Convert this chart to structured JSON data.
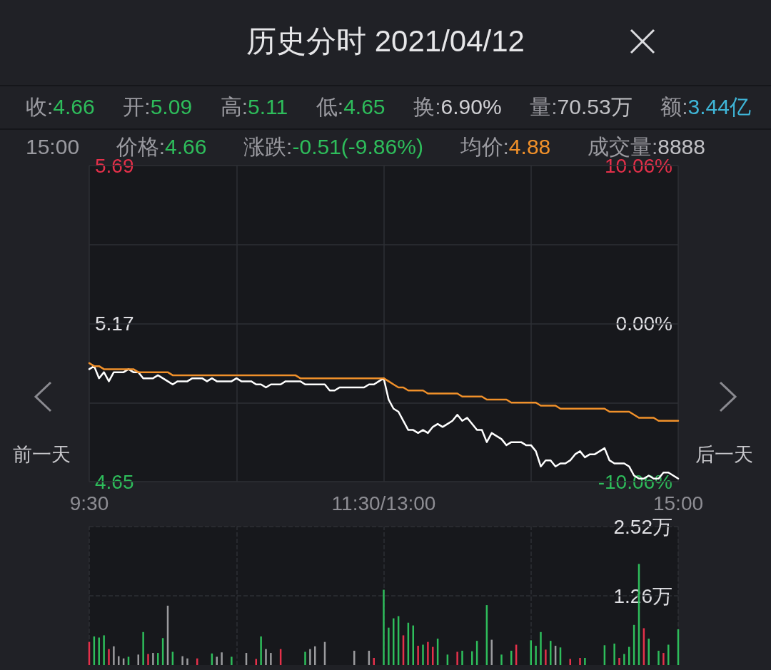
{
  "chart_data": [
    {
      "type": "line",
      "title": "历史分时 2021/04/12",
      "annotations": [
        "收:4.66",
        "开:5.09",
        "高:5.11",
        "低:4.65",
        "换:6.90%",
        "量:70.53万",
        "额:3.44亿",
        "15:00",
        "价格:4.66",
        "涨跌:-0.51(-9.86%)",
        "均价:4.88",
        "成交量:8888",
        "前一天",
        "后一天"
      ],
      "categories": [
        "9:30",
        null,
        null,
        null,
        null,
        null,
        null,
        null,
        null,
        null,
        null,
        null,
        null,
        null,
        null,
        null,
        null,
        null,
        null,
        null,
        null,
        null,
        null,
        null,
        null,
        null,
        null,
        null,
        null,
        null,
        null,
        null,
        null,
        null,
        null,
        null,
        null,
        null,
        null,
        null,
        null,
        null,
        null,
        null,
        null,
        null,
        null,
        null,
        null,
        null,
        null,
        null,
        null,
        null,
        null,
        null,
        null,
        null,
        null,
        null,
        "11:30/13:00",
        null,
        null,
        null,
        null,
        null,
        null,
        null,
        null,
        null,
        null,
        null,
        null,
        null,
        null,
        null,
        null,
        null,
        null,
        null,
        null,
        null,
        null,
        null,
        null,
        null,
        null,
        null,
        null,
        null,
        null,
        null,
        null,
        null,
        null,
        null,
        null,
        null,
        null,
        null,
        null,
        null,
        null,
        null,
        null,
        null,
        null,
        null,
        null,
        null,
        null,
        null,
        null,
        null,
        null,
        null,
        null,
        null,
        null,
        null,
        "15:00"
      ],
      "ylim": [
        4.65,
        5.69
      ],
      "yticks": [
        4.65,
        {
          "value": 4.91,
          "label": null
        },
        5.17,
        {
          "value": 5.43,
          "label": null
        },
        5.69
      ],
      "y2lim": [
        -10.06,
        10.06
      ],
      "y2ticks": [
        {
          "value": -10.06,
          "label": "-10.06%"
        },
        {
          "value": -5.03,
          "label": null
        },
        {
          "value": 0,
          "label": "0.00%"
        },
        {
          "value": 5.03,
          "label": null
        },
        {
          "value": 10.06,
          "label": "10.06%"
        }
      ],
      "grid": true,
      "marker": "none",
      "series": [
        {
          "color": "#ffffff",
          "values": [
            5.02,
            5.03,
            4.99,
            5.01,
            4.98,
            5.01,
            5.01,
            5.01,
            5.02,
            5.01,
            5.01,
            4.99,
            4.99,
            4.99,
            5.0,
            4.99,
            4.98,
            4.97,
            4.98,
            4.98,
            4.98,
            4.99,
            4.99,
            4.99,
            4.98,
            4.99,
            4.98,
            4.98,
            4.98,
            4.98,
            4.99,
            4.98,
            4.98,
            4.98,
            4.97,
            4.97,
            4.96,
            4.97,
            4.97,
            4.97,
            4.98,
            4.98,
            4.98,
            4.98,
            4.97,
            4.97,
            4.97,
            4.97,
            4.97,
            4.95,
            4.95,
            4.96,
            4.96,
            4.96,
            4.96,
            4.96,
            4.96,
            4.97,
            4.97,
            4.98,
            4.99,
            4.92,
            4.89,
            4.88,
            4.85,
            4.82,
            4.82,
            4.81,
            4.82,
            4.81,
            4.83,
            4.84,
            4.83,
            4.84,
            4.85,
            4.87,
            4.85,
            4.86,
            4.84,
            4.82,
            4.82,
            4.78,
            4.81,
            4.8,
            4.79,
            4.77,
            4.78,
            4.78,
            4.78,
            4.77,
            4.77,
            4.75,
            4.7,
            4.72,
            4.72,
            4.7,
            4.71,
            4.71,
            4.72,
            4.74,
            4.75,
            4.73,
            4.74,
            4.74,
            4.75,
            4.76,
            4.72,
            4.71,
            4.71,
            4.71,
            4.7,
            4.67,
            4.66,
            4.66,
            4.67,
            4.66,
            4.66,
            4.68,
            4.68,
            4.67,
            4.66
          ]
        },
        {
          "color": "#f0902a",
          "values": [
            5.04,
            5.03,
            5.03,
            5.02,
            5.02,
            5.02,
            5.02,
            5.02,
            5.02,
            5.02,
            5.01,
            5.01,
            5.01,
            5.01,
            5.01,
            5.01,
            5.01,
            5.0,
            5.0,
            5.0,
            5.0,
            5.0,
            5.0,
            5.0,
            5.0,
            5.0,
            5.0,
            5.0,
            5.0,
            5.0,
            5.0,
            5.0,
            5.0,
            5.0,
            5.0,
            5.0,
            5.0,
            5.0,
            5.0,
            5.0,
            5.0,
            5.0,
            5.0,
            4.99,
            4.99,
            4.99,
            4.99,
            4.99,
            4.99,
            4.99,
            4.99,
            4.99,
            4.99,
            4.99,
            4.99,
            4.99,
            4.99,
            4.99,
            4.99,
            4.99,
            4.99,
            4.98,
            4.97,
            4.96,
            4.96,
            4.95,
            4.95,
            4.95,
            4.95,
            4.94,
            4.94,
            4.94,
            4.94,
            4.94,
            4.94,
            4.94,
            4.93,
            4.93,
            4.93,
            4.93,
            4.93,
            4.92,
            4.92,
            4.92,
            4.92,
            4.92,
            4.91,
            4.91,
            4.91,
            4.91,
            4.91,
            4.91,
            4.9,
            4.9,
            4.9,
            4.9,
            4.89,
            4.89,
            4.89,
            4.89,
            4.89,
            4.89,
            4.89,
            4.89,
            4.89,
            4.89,
            4.88,
            4.88,
            4.88,
            4.88,
            4.88,
            4.87,
            4.86,
            4.86,
            4.86,
            4.86,
            4.85,
            4.85,
            4.85,
            4.85,
            4.85
          ]
        }
      ]
    },
    {
      "type": "bar",
      "tick_labels": "y",
      "grid": true,
      "categories": [
        null,
        null,
        null,
        null,
        null,
        null,
        null,
        null,
        null,
        null,
        null,
        null,
        null,
        null,
        null,
        null,
        null,
        null,
        null,
        null,
        null,
        null,
        null,
        null,
        null,
        null,
        null,
        null,
        null,
        null,
        null,
        null,
        null,
        null,
        null,
        null,
        null,
        null,
        null,
        null,
        null,
        null,
        null,
        null,
        null,
        null,
        null,
        null,
        null,
        null,
        null,
        null,
        null,
        null,
        null,
        null,
        null,
        null,
        null,
        null,
        null,
        null,
        null,
        null,
        null,
        null,
        null,
        null,
        null,
        null,
        null,
        null,
        null,
        null,
        null,
        null,
        null,
        null,
        null,
        null,
        null,
        null,
        null,
        null,
        null,
        null,
        null,
        null,
        null,
        null,
        null,
        null,
        null,
        null,
        null,
        null,
        null,
        null,
        null,
        null,
        null,
        null,
        null,
        null,
        null,
        null,
        null,
        null,
        null,
        null,
        null,
        null,
        null,
        null,
        null,
        null,
        null,
        null,
        null,
        null,
        null
      ],
      "ylim": [
        0,
        2.52
      ],
      "yticks": [
        {
          "value": 1.26,
          "label": "1.26万"
        },
        {
          "value": 2.52,
          "label": "2.52万"
        }
      ],
      "values": [
        0.42,
        0.52,
        0.5,
        0.54,
        0.29,
        0.34,
        0.16,
        0.12,
        0.15,
        null,
        0.19,
        0.6,
        0.2,
        0.22,
        0.22,
        0.49,
        1.08,
        0.24,
        null,
        0.16,
        0.12,
        null,
        0.12,
        null,
        null,
        0.21,
        0.15,
        0.23,
        null,
        0.15,
        null,
        null,
        0.22,
        null,
        0.11,
        0.52,
        0.29,
        0.22,
        null,
        0.29,
        null,
        null,
        null,
        null,
        0.24,
        0.29,
        0.34,
        null,
        0.42,
        null,
        null,
        null,
        null,
        null,
        0.26,
        null,
        null,
        0.26,
        0.13,
        null,
        1.37,
        0.68,
        0.85,
        0.89,
        0.54,
        0.77,
        0.72,
        0.35,
        0.37,
        0.42,
        0.33,
        0.48,
        null,
        0.19,
        null,
        0.24,
        0.26,
        null,
        0.25,
        0.44,
        null,
        1.09,
        0.46,
        null,
        0.19,
        null,
        0.26,
        0.37,
        null,
        null,
        0.45,
        0.35,
        0.6,
        0.28,
        0.44,
        0.35,
        0.32,
        null,
        0.11,
        null,
        0.13,
        0.13,
        null,
        null,
        null,
        0.36,
        null,
        0.39,
        0.13,
        0.2,
        0.33,
        0.73,
        1.84,
        0.67,
        0.48,
        null,
        0.26,
        0.22,
        0.37,
        null,
        0.65
      ],
      "colors": [
        "#e5304a",
        "#2ebd5b",
        "#2ebd5b",
        "#2ebd5b",
        "#e5304a",
        "#9b9b9e",
        "#9b9b9e",
        "#9b9b9e",
        "#2ebd5b",
        null,
        "#9b9b9e",
        "#2ebd5b",
        "#e5304a",
        "#9b9b9e",
        "#2ebd5b",
        "#2ebd5b",
        "#9b9b9e",
        "#2ebd5b",
        null,
        "#9b9b9e",
        "#9b9b9e",
        null,
        "#e5304a",
        null,
        null,
        "#2ebd5b",
        "#9b9b9e",
        "#9b9b9e",
        null,
        "#2ebd5b",
        null,
        null,
        "#9b9b9e",
        null,
        "#e5304a",
        "#2ebd5b",
        "#9b9b9e",
        "#9b9b9e",
        null,
        "#e5304a",
        null,
        null,
        null,
        null,
        "#2ebd5b",
        "#9b9b9e",
        "#9b9b9e",
        null,
        "#9b9b9e",
        null,
        null,
        null,
        null,
        null,
        "#9b9b9e",
        null,
        null,
        "#9b9b9e",
        "#e5304a",
        null,
        "#2ebd5b",
        "#2ebd5b",
        "#2ebd5b",
        "#2ebd5b",
        "#e5304a",
        "#2ebd5b",
        "#2ebd5b",
        "#e5304a",
        "#2ebd5b",
        "#e5304a",
        "#e5304a",
        "#2ebd5b",
        null,
        "#2ebd5b",
        null,
        "#e5304a",
        "#2ebd5b",
        null,
        "#2ebd5b",
        "#2ebd5b",
        null,
        "#2ebd5b",
        "#9b9b9e",
        null,
        "#2ebd5b",
        null,
        "#2ebd5b",
        "#e5304a",
        null,
        null,
        "#2ebd5b",
        "#2ebd5b",
        "#2ebd5b",
        "#e5304a",
        "#2ebd5b",
        "#9b9b9e",
        "#2ebd5b",
        null,
        "#e5304a",
        null,
        "#e5304a",
        "#2ebd5b",
        null,
        null,
        null,
        "#2ebd5b",
        null,
        "#2ebd5b",
        "#e5304a",
        "#2ebd5b",
        "#2ebd5b",
        "#2ebd5b",
        "#2ebd5b",
        "#e5304a",
        "#2ebd5b",
        null,
        "#2ebd5b",
        "#e5304a",
        "#2ebd5b",
        null,
        "#2ebd5b"
      ]
    }
  ]
}
